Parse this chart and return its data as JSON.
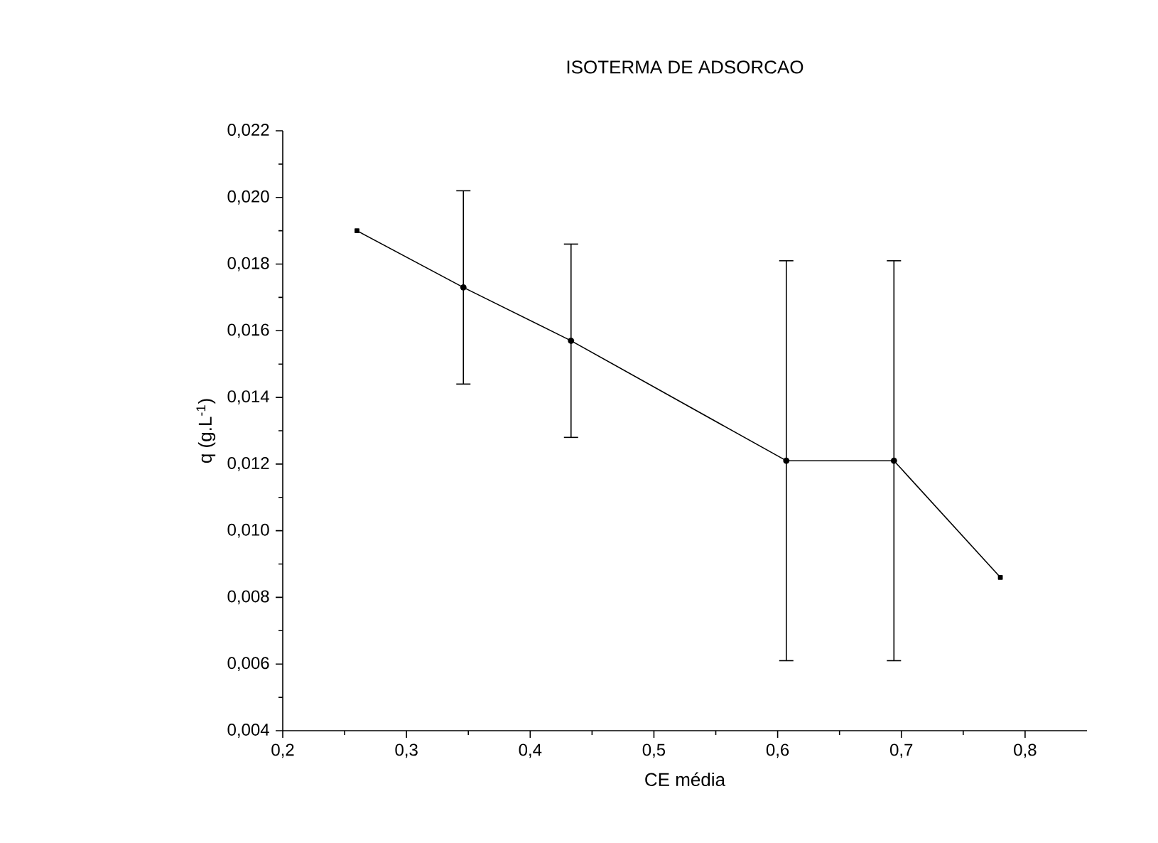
{
  "chart_data": {
    "type": "line",
    "title": "ISOTERMA DE ADSORCAO",
    "xlabel": "CE média",
    "ylabel": "q (g.L$^{-1}$)",
    "x": [
      0.26,
      0.346,
      0.433,
      0.607,
      0.694,
      0.78
    ],
    "series": [
      {
        "color": "#000000",
        "values": [
          0.019,
          0.0173,
          0.0157,
          0.0121,
          0.0121,
          0.0086
        ],
        "errors": [
          null,
          0.0029,
          0.0029,
          0.006,
          0.006,
          null
        ]
      }
    ],
    "xlim": [
      0.2,
      0.85
    ],
    "ylim": [
      0.004,
      0.022
    ],
    "xticks": [
      {
        "value": 0.2,
        "label": "0,2"
      },
      {
        "value": 0.3,
        "label": "0,3"
      },
      {
        "value": 0.4,
        "label": "0,4"
      },
      {
        "value": 0.5,
        "label": "0,5"
      },
      {
        "value": 0.6,
        "label": "0,6"
      },
      {
        "value": 0.7,
        "label": "0,7"
      },
      {
        "value": 0.8,
        "label": "0,8"
      }
    ],
    "yticks": [
      {
        "value": 0.004,
        "label": "0,004"
      },
      {
        "value": 0.006,
        "label": "0,006"
      },
      {
        "value": 0.008,
        "label": "0,008"
      },
      {
        "value": 0.01,
        "label": "0,010"
      },
      {
        "value": 0.012,
        "label": "0,012"
      },
      {
        "value": 0.014,
        "label": "0,014"
      },
      {
        "value": 0.016,
        "label": "0,016"
      },
      {
        "value": 0.018,
        "label": "0,018"
      },
      {
        "value": 0.02,
        "label": "0,020"
      },
      {
        "value": 0.022,
        "label": "0,022"
      }
    ],
    "grid": false,
    "legend": false,
    "marker": "square",
    "line_style": "solid"
  }
}
